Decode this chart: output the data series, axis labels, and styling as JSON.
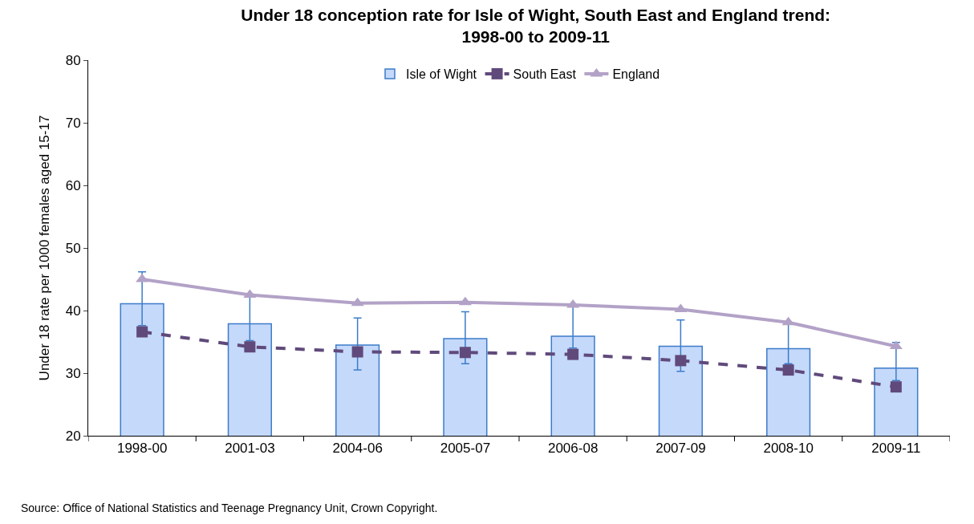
{
  "chart_data": {
    "type": "bar",
    "title": "Under 18 conception rate for Isle of Wight, South East and England trend:\n1998-00 to 2009-11",
    "ylabel": "Under 18 rate per 1000 females aged 15-17",
    "categories": [
      "1998-00",
      "2001-03",
      "2004-06",
      "2005-07",
      "2006-08",
      "2007-09",
      "2008-10",
      "2009-11"
    ],
    "series": [
      {
        "name": "Isle of Wight",
        "color": "#c5d9fb",
        "values": [
          41.1,
          37.9,
          34.5,
          35.5,
          35.9,
          34.3,
          33.9,
          30.8
        ],
        "errors": [
          [
            37.6,
            46.2
          ],
          [
            35.2,
            42.3
          ],
          [
            30.5,
            38.8
          ],
          [
            31.5,
            39.8
          ],
          [
            34.0,
            40.8
          ],
          [
            30.3,
            38.5
          ],
          [
            31.5,
            38.0
          ],
          [
            28.8,
            34.9
          ]
        ]
      },
      {
        "name": "South East",
        "type": "line",
        "color": "#604a7b",
        "line_style": "dashed",
        "marker": "square",
        "values": [
          36.6,
          34.2,
          33.4,
          33.3,
          33.0,
          32.0,
          30.5,
          27.8
        ]
      },
      {
        "name": "England",
        "type": "line",
        "color": "#b3a2c7",
        "line_style": "solid",
        "marker": "triangle",
        "values": [
          45.0,
          42.5,
          41.2,
          41.3,
          40.9,
          40.2,
          38.1,
          34.3
        ]
      }
    ],
    "ylim": [
      20,
      80
    ],
    "yticks": [
      20,
      30,
      40,
      50,
      60,
      70,
      80
    ],
    "legend": "top",
    "annotations": [
      "Source: Office of National Statistics and Teenage Pregnancy Unit, Crown Copyright."
    ]
  }
}
